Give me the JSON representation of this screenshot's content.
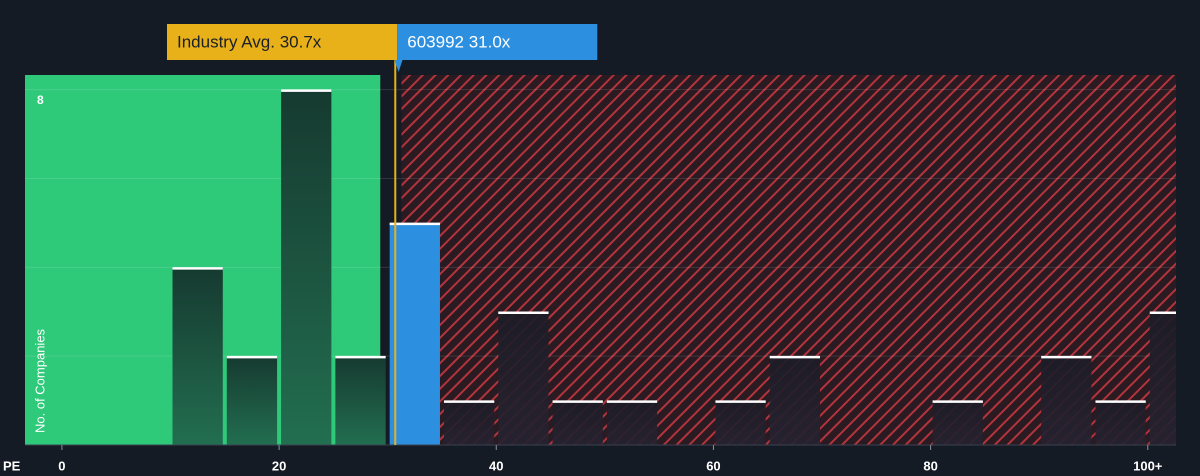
{
  "chart_data": {
    "type": "histogram",
    "x_label": "PE",
    "y_label": "No. of Companies",
    "bins": [
      0,
      5,
      10,
      15,
      20,
      25,
      30,
      35,
      40,
      45,
      50,
      55,
      60,
      65,
      70,
      75,
      80,
      85,
      90,
      95,
      100,
      105
    ],
    "values": [
      0,
      0,
      4,
      2,
      8,
      2,
      5,
      1,
      3,
      1,
      1,
      0,
      1,
      2,
      0,
      0,
      1,
      0,
      2,
      1,
      3
    ],
    "xlim": [
      -3.4,
      102.6
    ],
    "xticks": [
      0,
      20,
      40,
      60,
      80,
      {
        "value": 100,
        "label": "100+"
      }
    ],
    "ylim": [
      0,
      8.33
    ],
    "yticks": [
      {
        "value": 2,
        "label": null
      },
      {
        "value": 4,
        "label": null
      },
      {
        "value": 6,
        "label": null
      },
      8
    ],
    "grid": true,
    "industry_average": {
      "value": 30.7,
      "label": "Industry Avg. 30.7x",
      "color": "#e8b11a"
    },
    "company": {
      "value": 31.0,
      "label": "603992 31.0x",
      "color": "#2d8fe0"
    },
    "undervalued_color": "#2fc97a",
    "overvalued_color": "#b3343c"
  }
}
